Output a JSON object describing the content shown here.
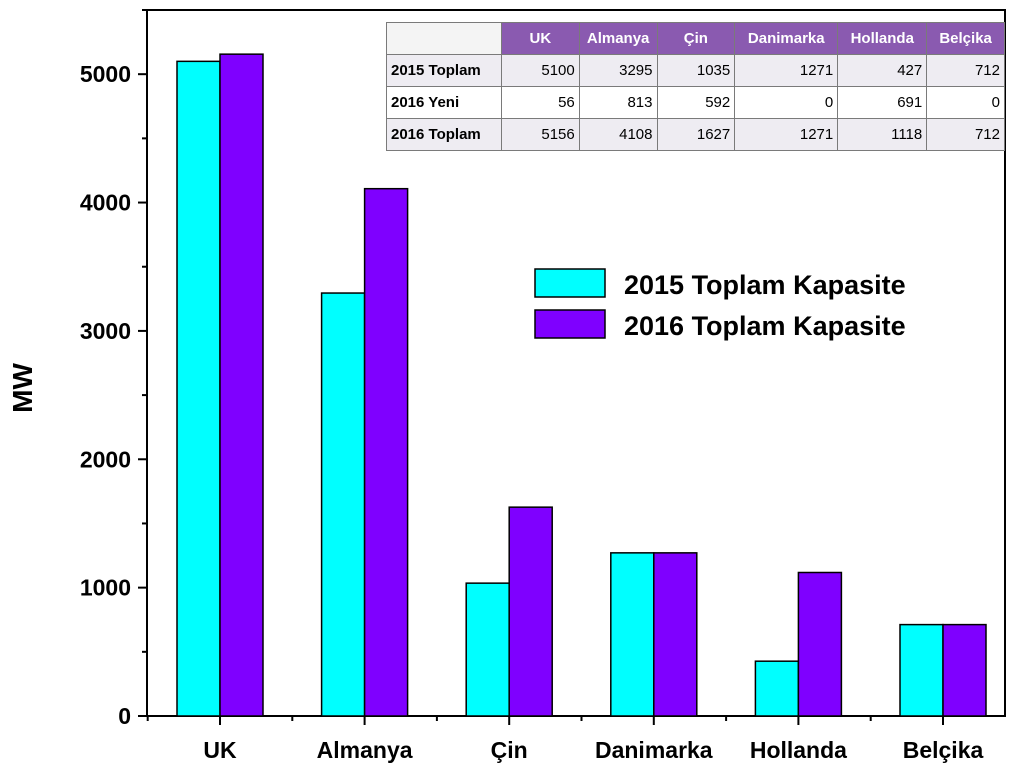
{
  "colors": {
    "series_2015": "#00ffff",
    "series_2016": "#7f00ff",
    "table_header": "#8a5ab0"
  },
  "chart_data": {
    "type": "bar",
    "categories": [
      "UK",
      "Almanya",
      "Çin",
      "Danimarka",
      "Hollanda",
      "Belçika"
    ],
    "series": [
      {
        "name": "2015 Toplam Kapasite",
        "values": [
          5100,
          3295,
          1035,
          1271,
          427,
          712
        ]
      },
      {
        "name": "2016 Toplam Kapasite",
        "values": [
          5156,
          4108,
          1627,
          1271,
          1118,
          712
        ]
      }
    ],
    "ylabel": "MW",
    "xlabel": "",
    "ylim": [
      0,
      5500
    ],
    "yticks": [
      "0",
      "1000",
      "2000",
      "3000",
      "4000",
      "5000"
    ],
    "grid": false,
    "legend": "right"
  },
  "table": {
    "headers": [
      "UK",
      "Almanya",
      "Çin",
      "Danimarka",
      "Hollanda",
      "Belçika"
    ],
    "rows": [
      {
        "label": "2015 Toplam",
        "values": [
          "5100",
          "3295",
          "1035",
          "1271",
          "427",
          "712"
        ]
      },
      {
        "label": "2016 Yeni",
        "values": [
          "56",
          "813",
          "592",
          "0",
          "691",
          "0"
        ]
      },
      {
        "label": "2016 Toplam",
        "values": [
          "5156",
          "4108",
          "1627",
          "1271",
          "1118",
          "712"
        ]
      }
    ]
  }
}
